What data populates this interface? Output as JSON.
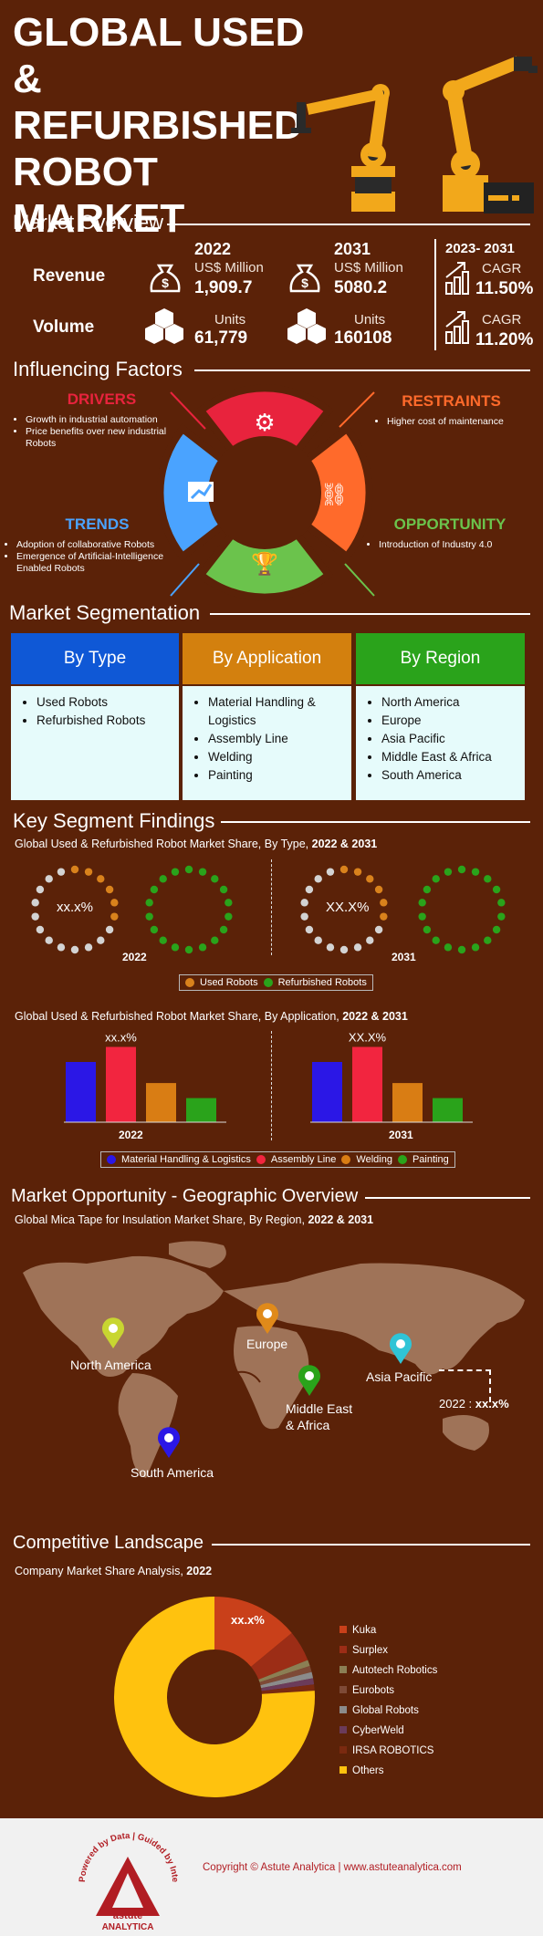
{
  "title": [
    "GLOBAL USED &",
    "REFURBISHED",
    "ROBOT",
    "MARKET"
  ],
  "overview": {
    "heading": "Market Overview",
    "revenue": {
      "label": "Revenue",
      "y1": "2022",
      "unit1": "US$ Million",
      "v1": "1,909.7",
      "y2": "2031",
      "unit2": "US$ Million",
      "v2": "5080.2"
    },
    "volume": {
      "label": "Volume",
      "unit1": "Units",
      "v1": "61,779",
      "unit2": "Units",
      "v2": "160108"
    },
    "cagr_period": "2023- 2031",
    "cagr_label": "CAGR",
    "cagr_revenue": "11.50%",
    "cagr_volume": "11.20%"
  },
  "factors": {
    "heading": "Influencing Factors",
    "drivers": {
      "title": "DRIVERS",
      "items": [
        "Growth in industrial automation",
        "Price benefits over new industrial Robots"
      ]
    },
    "restraints": {
      "title": "RESTRAINTS",
      "items": [
        "Higher cost of maintenance"
      ]
    },
    "trends": {
      "title": "TRENDS",
      "items": [
        "Adoption of collaborative Robots",
        "Emergence of Artificial-Intelligence Enabled Robots"
      ]
    },
    "opportunity": {
      "title": "OPPORTUNITY",
      "items": [
        "Introduction of Industry 4.0"
      ]
    }
  },
  "segmentation": {
    "heading": "Market Segmentation",
    "type": {
      "title": "By Type",
      "items": [
        "Used Robots",
        "Refurbished Robots"
      ]
    },
    "application": {
      "title": "By Application",
      "items": [
        "Material Handling & Logistics",
        "Assembly Line",
        "Welding",
        "Painting"
      ]
    },
    "region": {
      "title": "By Region",
      "items": [
        "North America",
        "Europe",
        "Asia Pacific",
        "Middle East & Africa",
        "South America"
      ]
    }
  },
  "findings": {
    "heading": "Key Segment Findings",
    "type_sub": "Global Used & Refurbished Robot Market Share, By Type,",
    "type_sub_years": "2022 & 2031",
    "placeholder": "xx.x%",
    "placeholder_bold": "XX.X%",
    "year_a": "2022",
    "year_b": "2031",
    "type_legend": [
      "Used Robots",
      "Refurbished Robots"
    ],
    "app_sub": "Global Used & Refurbished Robot Market Share, By Application,",
    "app_sub_years": "2022 & 2031",
    "app_legend": [
      "Material Handling & Logistics",
      "Assembly Line",
      "Welding",
      "Painting"
    ]
  },
  "chart_data": [
    {
      "type": "pie",
      "title": "Global Used & Refurbished Robot Market Share, By Type, 2022",
      "labels": [
        "Used Robots",
        "Refurbished Robots"
      ],
      "annotation": "xx.x%",
      "colors": [
        "#d9821c",
        "#2aa31b"
      ]
    },
    {
      "type": "pie",
      "title": "Global Used & Refurbished Robot Market Share, By Type, 2031",
      "labels": [
        "Used Robots",
        "Refurbished Robots"
      ],
      "annotation": "XX.X%",
      "colors": [
        "#d9821c",
        "#2aa31b"
      ]
    },
    {
      "type": "bar",
      "categories": [
        "Material Handling & Logistics",
        "Assembly Line",
        "Welding",
        "Painting"
      ],
      "values": [
        4,
        5,
        2.6,
        1.6
      ],
      "annotation": "xx.x%",
      "year": "2022",
      "colors": [
        "#2b17e6",
        "#f2253f",
        "#d97d14",
        "#2aa31b"
      ]
    },
    {
      "type": "bar",
      "categories": [
        "Material Handling & Logistics",
        "Assembly Line",
        "Welding",
        "Painting"
      ],
      "values": [
        4,
        5,
        2.6,
        1.6
      ],
      "annotation": "XX.X%",
      "year": "2031",
      "colors": [
        "#2b17e6",
        "#f2253f",
        "#d97d14",
        "#2aa31b"
      ]
    },
    {
      "type": "pie",
      "title": "Company Market Share Analysis, 2022",
      "labels": [
        "Kuka",
        "Surplex",
        "Autotech Robotics",
        "Eurobots",
        "Global Robots",
        "CyberWeld",
        "IRSA ROBOTICS",
        "Others"
      ],
      "values": [
        14,
        5,
        1,
        1,
        1,
        1,
        1,
        76
      ],
      "annotation": "xx.x%",
      "colors": [
        "#c9401a",
        "#9c2d16",
        "#8b7f54",
        "#7e4a36",
        "#8b8b8b",
        "#6b3b5a",
        "#7a2a10",
        "#ffc20e"
      ]
    }
  ],
  "geo": {
    "heading": "Market Opportunity - Geographic Overview",
    "sub": "Global Mica Tape for Insulation Market Share, By Region,",
    "sub_years": "2022 & 2031",
    "regions": [
      "North America",
      "Europe",
      "Asia Pacific",
      "Middle East",
      "& Africa",
      "South America"
    ],
    "callout": "2022 :",
    "callout_val": "xx.x%"
  },
  "competitive": {
    "heading": "Competitive Landscape",
    "sub": "Company Market Share Analysis,",
    "sub_year": "2022"
  },
  "footer": {
    "copyright": "Copyright © Astute Analytica  |  www.astuteanalytica.com",
    "logo_top": "Powered by Data | Guided by Intelligence",
    "logo_name": "astute",
    "logo_name2": "ANALYTICA"
  },
  "colors": {
    "background": "#5b2208",
    "type": "#0f58d6",
    "application": "#d3800e",
    "region": "#2aa31b",
    "drivers": "#e8233d",
    "restraints": "#ff6a2b",
    "trends": "#4aa3ff",
    "opportunity": "#6bc34c"
  }
}
